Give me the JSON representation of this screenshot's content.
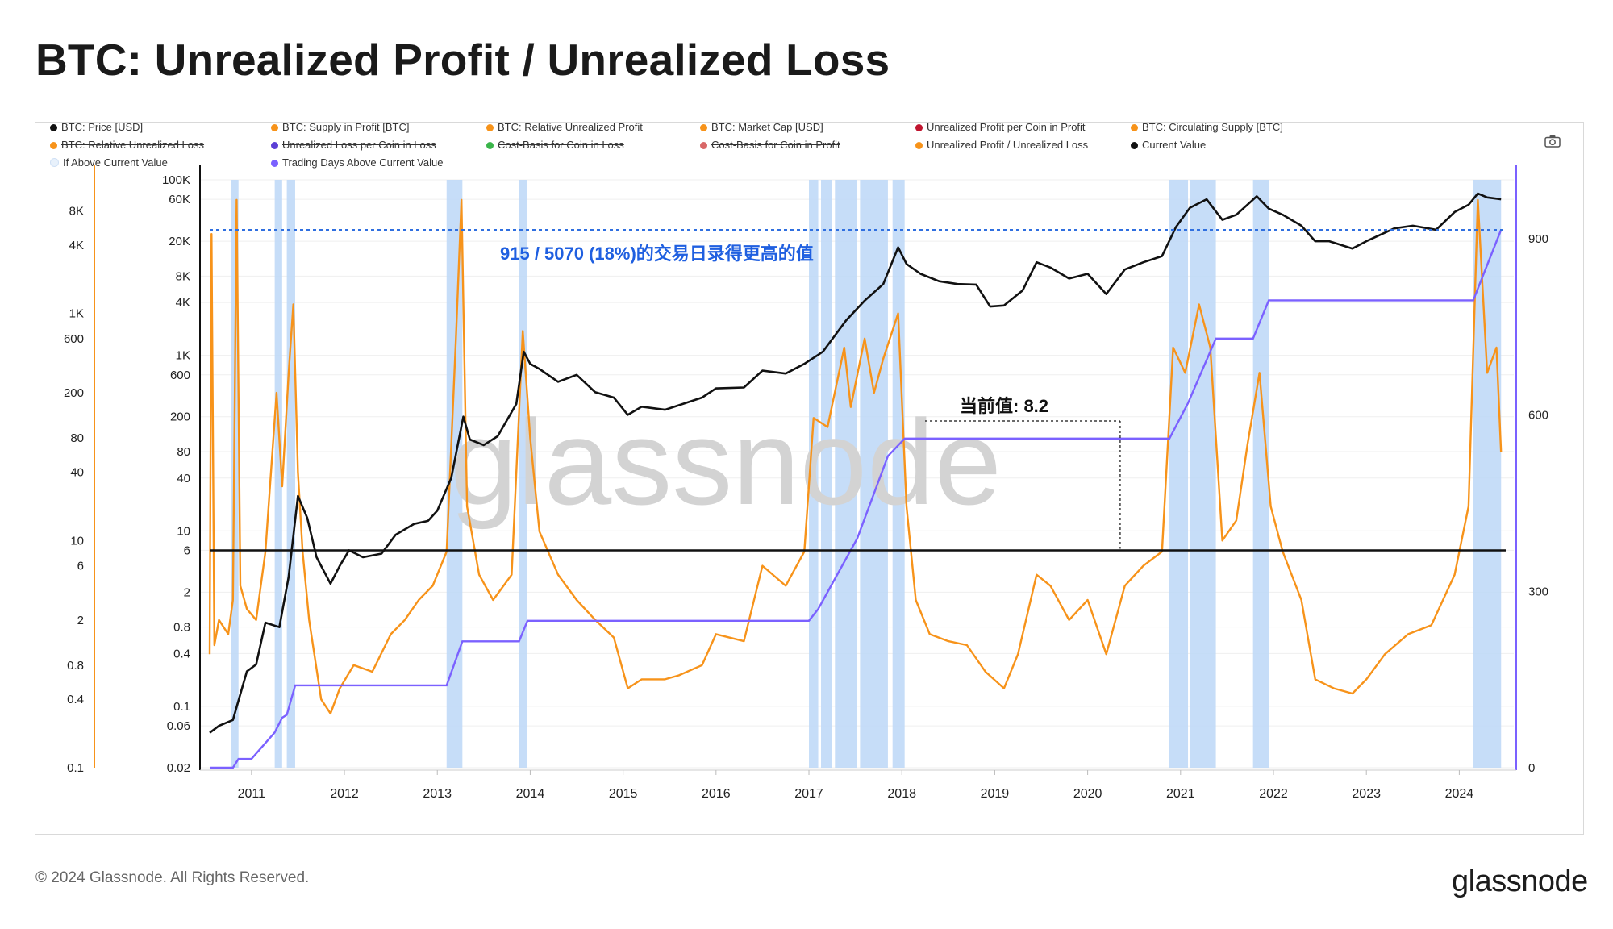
{
  "title": "BTC: Unrealized Profit / Unrealized Loss",
  "legend": [
    {
      "label": "BTC: Price [USD]",
      "color": "#111111",
      "struck": false
    },
    {
      "label": "BTC: Supply in Profit [BTC]",
      "color": "#f7931a",
      "struck": true
    },
    {
      "label": "BTC: Relative Unrealized Profit",
      "color": "#f7931a",
      "struck": true
    },
    {
      "label": "BTC: Market Cap [USD]",
      "color": "#f7931a",
      "struck": true
    },
    {
      "label": "Unrealized Profit per Coin in Profit",
      "color": "#c0152f",
      "struck": true
    },
    {
      "label": "BTC: Circulating Supply [BTC]",
      "color": "#f7931a",
      "struck": true
    },
    {
      "label": "BTC: Relative Unrealized Loss",
      "color": "#f7931a",
      "struck": true
    },
    {
      "label": "Unrealized Loss per Coin in Loss",
      "color": "#5b3fd6",
      "struck": true
    },
    {
      "label": "Cost-Basis for Coin in Loss",
      "color": "#3ab54a",
      "struck": true
    },
    {
      "label": "Cost-Basis for Coin in Profit",
      "color": "#d96868",
      "struck": true
    },
    {
      "label": "Unrealized Profit / Unrealized Loss",
      "color": "#f7931a",
      "struck": false
    },
    {
      "label": "Current Value",
      "color": "#111111",
      "struck": false
    },
    {
      "label": "If Above Current Value",
      "color": "#e8f1fb",
      "struck": false
    },
    {
      "label": "Trading Days Above Current Value",
      "color": "#7b61ff",
      "struck": false
    }
  ],
  "annotations": {
    "summary": "915 / 5070 (18%)的交易日录得更高的值",
    "current_value_label": "当前值: 8.2"
  },
  "footer": {
    "copyright": "© 2024 Glassnode. All Rights Reserved.",
    "brand": "glassnode",
    "watermark": "glassnode"
  },
  "icons": {
    "camera": "camera-icon"
  },
  "colors": {
    "price": "#111111",
    "ratio": "#f7931a",
    "days": "#7b61ff",
    "band": "#bcd7f7",
    "dashed": "#2f6fe0",
    "summary_text": "#1f5fe0"
  },
  "chart_data": {
    "type": "line",
    "title": "BTC: Unrealized Profit / Unrealized Loss",
    "x_ticks": [
      "2011",
      "2012",
      "2013",
      "2014",
      "2015",
      "2016",
      "2017",
      "2018",
      "2019",
      "2020",
      "2021",
      "2022",
      "2023",
      "2024"
    ],
    "x_range": [
      2010.55,
      2024.5
    ],
    "axes": {
      "ratio_axis": {
        "scale": "log",
        "range": [
          0.1,
          15000
        ],
        "ticks": [
          "0.1",
          "0.4",
          "0.8",
          "2",
          "6",
          "10",
          "40",
          "80",
          "200",
          "600",
          "1K",
          "4K",
          "8K"
        ]
      },
      "price_axis": {
        "scale": "log",
        "range": [
          0.02,
          100000
        ],
        "ticks": [
          "0.02",
          "0.06",
          "0.1",
          "0.4",
          "0.8",
          "2",
          "6",
          "10",
          "40",
          "80",
          "200",
          "600",
          "1K",
          "4K",
          "8K",
          "20K",
          "60K",
          "100K"
        ]
      },
      "days_axis": {
        "scale": "linear",
        "range": [
          0,
          1000
        ],
        "ticks": [
          "0",
          "300",
          "600",
          "900"
        ]
      }
    },
    "current_value": 8.2,
    "above_count": 915,
    "total_days": 5070,
    "above_pct": 18,
    "shaded_periods": [
      [
        2010.78,
        2010.86
      ],
      [
        2011.25,
        2011.33
      ],
      [
        2011.38,
        2011.47
      ],
      [
        2013.1,
        2013.27
      ],
      [
        2013.88,
        2013.97
      ],
      [
        2017.0,
        2017.1
      ],
      [
        2017.13,
        2017.25
      ],
      [
        2017.28,
        2017.52
      ],
      [
        2017.55,
        2017.85
      ],
      [
        2017.9,
        2018.03
      ],
      [
        2020.88,
        2021.08
      ],
      [
        2021.1,
        2021.38
      ],
      [
        2021.78,
        2021.95
      ],
      [
        2024.15,
        2024.45
      ]
    ],
    "series": [
      {
        "name": "BTC: Price [USD]",
        "axis": "price",
        "points": [
          [
            2010.55,
            0.05
          ],
          [
            2010.65,
            0.06
          ],
          [
            2010.8,
            0.07
          ],
          [
            2010.95,
            0.25
          ],
          [
            2011.05,
            0.3
          ],
          [
            2011.15,
            0.9
          ],
          [
            2011.3,
            0.8
          ],
          [
            2011.4,
            3
          ],
          [
            2011.5,
            25
          ],
          [
            2011.6,
            14
          ],
          [
            2011.7,
            5
          ],
          [
            2011.85,
            2.5
          ],
          [
            2011.95,
            4
          ],
          [
            2012.05,
            6
          ],
          [
            2012.2,
            5
          ],
          [
            2012.4,
            5.5
          ],
          [
            2012.55,
            9
          ],
          [
            2012.75,
            12
          ],
          [
            2012.9,
            13
          ],
          [
            2013.0,
            17
          ],
          [
            2013.15,
            40
          ],
          [
            2013.28,
            200
          ],
          [
            2013.35,
            110
          ],
          [
            2013.5,
            95
          ],
          [
            2013.65,
            120
          ],
          [
            2013.85,
            280
          ],
          [
            2013.93,
            1100
          ],
          [
            2014.0,
            800
          ],
          [
            2014.1,
            700
          ],
          [
            2014.3,
            500
          ],
          [
            2014.5,
            600
          ],
          [
            2014.7,
            380
          ],
          [
            2014.9,
            330
          ],
          [
            2015.05,
            210
          ],
          [
            2015.2,
            260
          ],
          [
            2015.45,
            240
          ],
          [
            2015.6,
            270
          ],
          [
            2015.85,
            330
          ],
          [
            2016.0,
            420
          ],
          [
            2016.3,
            430
          ],
          [
            2016.5,
            670
          ],
          [
            2016.75,
            620
          ],
          [
            2016.95,
            800
          ],
          [
            2017.15,
            1100
          ],
          [
            2017.4,
            2500
          ],
          [
            2017.6,
            4200
          ],
          [
            2017.8,
            6500
          ],
          [
            2017.96,
            17000
          ],
          [
            2018.05,
            11000
          ],
          [
            2018.2,
            8500
          ],
          [
            2018.4,
            7000
          ],
          [
            2018.6,
            6500
          ],
          [
            2018.8,
            6400
          ],
          [
            2018.95,
            3600
          ],
          [
            2019.1,
            3700
          ],
          [
            2019.3,
            5500
          ],
          [
            2019.45,
            11500
          ],
          [
            2019.6,
            10000
          ],
          [
            2019.8,
            7500
          ],
          [
            2020.0,
            8500
          ],
          [
            2020.2,
            5000
          ],
          [
            2020.4,
            9500
          ],
          [
            2020.6,
            11500
          ],
          [
            2020.8,
            13500
          ],
          [
            2020.95,
            29000
          ],
          [
            2021.1,
            48000
          ],
          [
            2021.28,
            60000
          ],
          [
            2021.45,
            35000
          ],
          [
            2021.6,
            40000
          ],
          [
            2021.82,
            65000
          ],
          [
            2021.95,
            47000
          ],
          [
            2022.1,
            40000
          ],
          [
            2022.3,
            30000
          ],
          [
            2022.45,
            20000
          ],
          [
            2022.6,
            20000
          ],
          [
            2022.85,
            16500
          ],
          [
            2023.0,
            20000
          ],
          [
            2023.3,
            28000
          ],
          [
            2023.5,
            30000
          ],
          [
            2023.75,
            27000
          ],
          [
            2023.95,
            43000
          ],
          [
            2024.1,
            52000
          ],
          [
            2024.2,
            70000
          ],
          [
            2024.3,
            63000
          ],
          [
            2024.45,
            60000
          ]
        ]
      },
      {
        "name": "Unrealized Profit / Unrealized Loss",
        "axis": "ratio",
        "points": [
          [
            2010.55,
            1
          ],
          [
            2010.57,
            5000
          ],
          [
            2010.6,
            1.2
          ],
          [
            2010.65,
            2
          ],
          [
            2010.75,
            1.5
          ],
          [
            2010.8,
            3
          ],
          [
            2010.84,
            10000
          ],
          [
            2010.88,
            4
          ],
          [
            2010.95,
            2.5
          ],
          [
            2011.05,
            2
          ],
          [
            2011.15,
            8
          ],
          [
            2011.27,
            200
          ],
          [
            2011.33,
            30
          ],
          [
            2011.4,
            300
          ],
          [
            2011.45,
            1200
          ],
          [
            2011.5,
            40
          ],
          [
            2011.55,
            8
          ],
          [
            2011.62,
            2
          ],
          [
            2011.75,
            0.4
          ],
          [
            2011.85,
            0.3
          ],
          [
            2011.95,
            0.5
          ],
          [
            2012.1,
            0.8
          ],
          [
            2012.3,
            0.7
          ],
          [
            2012.5,
            1.5
          ],
          [
            2012.65,
            2
          ],
          [
            2012.8,
            3
          ],
          [
            2012.95,
            4
          ],
          [
            2013.1,
            8
          ],
          [
            2013.2,
            600
          ],
          [
            2013.26,
            10000
          ],
          [
            2013.32,
            20
          ],
          [
            2013.45,
            5
          ],
          [
            2013.6,
            3
          ],
          [
            2013.8,
            5
          ],
          [
            2013.92,
            700
          ],
          [
            2014.0,
            80
          ],
          [
            2014.1,
            12
          ],
          [
            2014.3,
            5
          ],
          [
            2014.5,
            3
          ],
          [
            2014.7,
            2
          ],
          [
            2014.9,
            1.4
          ],
          [
            2015.05,
            0.5
          ],
          [
            2015.2,
            0.6
          ],
          [
            2015.45,
            0.6
          ],
          [
            2015.6,
            0.65
          ],
          [
            2015.85,
            0.8
          ],
          [
            2016.0,
            1.5
          ],
          [
            2016.3,
            1.3
          ],
          [
            2016.5,
            6
          ],
          [
            2016.75,
            4
          ],
          [
            2016.95,
            8
          ],
          [
            2017.05,
            120
          ],
          [
            2017.2,
            100
          ],
          [
            2017.38,
            500
          ],
          [
            2017.45,
            150
          ],
          [
            2017.6,
            600
          ],
          [
            2017.7,
            200
          ],
          [
            2017.8,
            400
          ],
          [
            2017.96,
            1000
          ],
          [
            2018.05,
            20
          ],
          [
            2018.15,
            3
          ],
          [
            2018.3,
            1.5
          ],
          [
            2018.5,
            1.3
          ],
          [
            2018.7,
            1.2
          ],
          [
            2018.9,
            0.7
          ],
          [
            2019.1,
            0.5
          ],
          [
            2019.25,
            1
          ],
          [
            2019.45,
            5
          ],
          [
            2019.6,
            4
          ],
          [
            2019.8,
            2
          ],
          [
            2020.0,
            3
          ],
          [
            2020.2,
            1
          ],
          [
            2020.4,
            4
          ],
          [
            2020.6,
            6
          ],
          [
            2020.8,
            8
          ],
          [
            2020.92,
            500
          ],
          [
            2021.05,
            300
          ],
          [
            2021.2,
            1200
          ],
          [
            2021.32,
            500
          ],
          [
            2021.45,
            10
          ],
          [
            2021.6,
            15
          ],
          [
            2021.72,
            70
          ],
          [
            2021.85,
            300
          ],
          [
            2021.97,
            20
          ],
          [
            2022.1,
            8
          ],
          [
            2022.3,
            3
          ],
          [
            2022.45,
            0.6
          ],
          [
            2022.65,
            0.5
          ],
          [
            2022.85,
            0.45
          ],
          [
            2023.0,
            0.6
          ],
          [
            2023.2,
            1
          ],
          [
            2023.45,
            1.5
          ],
          [
            2023.7,
            1.8
          ],
          [
            2023.95,
            5
          ],
          [
            2024.1,
            20
          ],
          [
            2024.2,
            10000
          ],
          [
            2024.3,
            300
          ],
          [
            2024.4,
            500
          ],
          [
            2024.45,
            60
          ]
        ]
      },
      {
        "name": "Trading Days Above Current Value",
        "axis": "days",
        "points": [
          [
            2010.55,
            0
          ],
          [
            2010.8,
            0
          ],
          [
            2010.86,
            15
          ],
          [
            2011.0,
            15
          ],
          [
            2011.25,
            60
          ],
          [
            2011.33,
            85
          ],
          [
            2011.38,
            90
          ],
          [
            2011.47,
            140
          ],
          [
            2013.1,
            140
          ],
          [
            2013.27,
            215
          ],
          [
            2013.88,
            215
          ],
          [
            2013.97,
            250
          ],
          [
            2017.0,
            250
          ],
          [
            2017.1,
            270
          ],
          [
            2017.52,
            390
          ],
          [
            2017.85,
            530
          ],
          [
            2018.03,
            560
          ],
          [
            2020.88,
            560
          ],
          [
            2021.08,
            620
          ],
          [
            2021.38,
            730
          ],
          [
            2021.78,
            730
          ],
          [
            2021.95,
            795
          ],
          [
            2024.15,
            795
          ],
          [
            2024.45,
            915
          ]
        ]
      }
    ]
  }
}
